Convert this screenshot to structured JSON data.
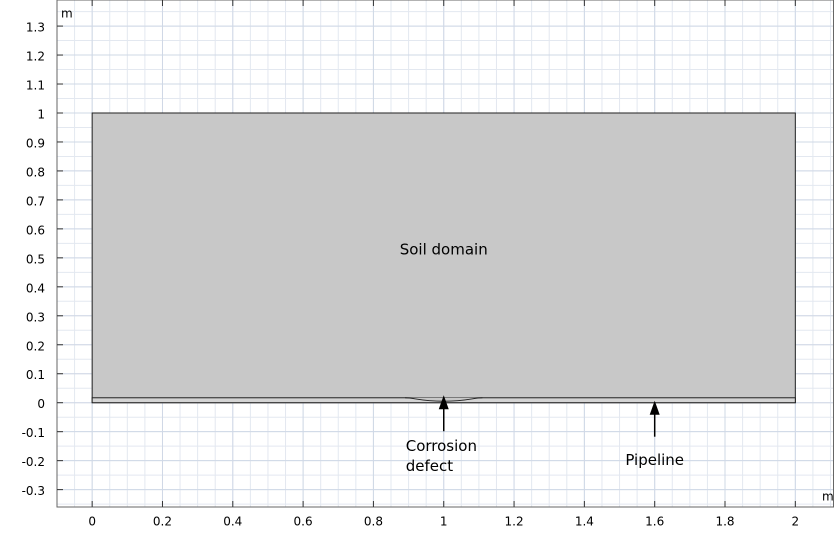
{
  "chart_data": {
    "type": "geometry",
    "x_unit": "m",
    "y_unit": "m",
    "xlim": [
      -0.1,
      2.11
    ],
    "ylim": [
      -0.36,
      1.39
    ],
    "xticks": [
      0,
      0.2,
      0.4,
      0.6,
      0.8,
      1,
      1.2,
      1.4,
      1.6,
      1.8,
      2
    ],
    "yticks": [
      -0.3,
      -0.2,
      -0.1,
      0,
      0.1,
      0.2,
      0.3,
      0.4,
      0.5,
      0.6,
      0.7,
      0.8,
      0.9,
      1,
      1.1,
      1.2,
      1.3
    ],
    "grid": true,
    "domain": {
      "label": "Soil domain",
      "x": [
        0,
        2
      ],
      "y": [
        0,
        1
      ],
      "color": "#c8c8c8"
    },
    "pipeline": {
      "label": "Pipeline",
      "thickness": 0.017,
      "arrow_x": 1.6
    },
    "defect": {
      "label": [
        "Corrosion",
        "defect"
      ],
      "x": [
        0.89,
        1.11
      ],
      "depth": 0.012
    }
  }
}
